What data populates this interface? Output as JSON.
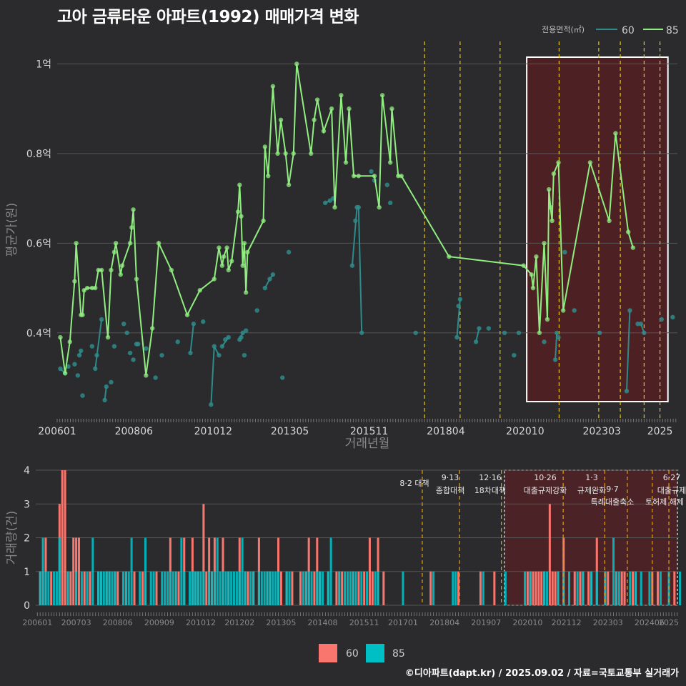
{
  "title": "고아 금류타운 아파트(1992) 매매가격 변화",
  "footer": "©디아파트(dapt.kr) / 2025.09.02 / 자료=국토교통부 실거래가",
  "colors": {
    "s60_line": "#2e8b8b",
    "s85_line": "#90ee80",
    "bar60": "#f8766d",
    "bar85": "#00bfc4",
    "policy": "#e6c419",
    "highlight_fill": "#5a1f22"
  },
  "chart_data": [
    {
      "type": "line",
      "ylabel": "평균가(원)",
      "xlabel": "거래년월",
      "legend_title": "전용면적(㎡)",
      "legend_position": "top-right",
      "x_ticks": [
        "200601",
        "200806",
        "201012",
        "201305",
        "201511",
        "201804",
        "202010",
        "202303",
        "2025"
      ],
      "y_ticks": [
        {
          "v": 0.4,
          "label": "0.4억"
        },
        {
          "v": 0.6,
          "label": "0.6억"
        },
        {
          "v": 0.8,
          "label": "0.8억"
        },
        {
          "v": 1.0,
          "label": "1억"
        }
      ],
      "ylim": [
        0.21,
        1.05
      ],
      "policy_dates": [
        2017.58,
        2018.7,
        2019.96,
        2021.82,
        2023.07,
        2023.75,
        2024.5,
        2025.0
      ],
      "highlight": [
        2020.8,
        2025.25
      ],
      "series": [
        {
          "name": "60",
          "points": [
            [
              2006.1,
              0.32
            ],
            [
              2006.25,
              0.31
            ],
            [
              2006.35,
              0.325
            ],
            [
              2006.55,
              0.33
            ],
            [
              2006.65,
              0.305
            ],
            [
              2006.7,
              0.35
            ],
            [
              2006.75,
              0.36
            ],
            [
              2006.8,
              0.26
            ],
            [
              2007.1,
              0.37
            ],
            [
              2007.2,
              0.32
            ],
            [
              2007.25,
              0.35
            ],
            [
              2007.4,
              0.43
            ],
            [
              2007.5,
              0.25
            ],
            [
              2007.55,
              0.28
            ],
            [
              2007.7,
              0.29
            ],
            [
              2007.8,
              0.37
            ],
            [
              2008.1,
              0.42
            ],
            [
              2008.2,
              0.4
            ],
            [
              2008.3,
              0.355
            ],
            [
              2008.4,
              0.34
            ],
            [
              2008.5,
              0.375
            ],
            [
              2008.55,
              0.375
            ],
            [
              2008.8,
              0.365
            ],
            [
              2009.1,
              0.3
            ],
            [
              2009.3,
              0.35
            ],
            [
              2009.8,
              0.38
            ],
            [
              2010.2,
              0.355
            ],
            [
              2010.3,
              0.42
            ],
            [
              2010.6,
              0.425
            ],
            [
              2010.85,
              0.24
            ],
            [
              2010.95,
              0.37
            ],
            [
              2011.1,
              0.35
            ],
            [
              2011.2,
              0.37
            ],
            [
              2011.3,
              0.385
            ],
            [
              2011.4,
              0.39
            ],
            [
              2011.75,
              0.385
            ],
            [
              2011.8,
              0.39
            ],
            [
              2011.85,
              0.4
            ],
            [
              2011.9,
              0.35
            ],
            [
              2011.95,
              0.405
            ],
            [
              2012.3,
              0.45
            ],
            [
              2012.55,
              0.5
            ],
            [
              2012.7,
              0.52
            ],
            [
              2012.8,
              0.53
            ],
            [
              2013.1,
              0.3
            ],
            [
              2013.3,
              0.58
            ],
            [
              2014.45,
              0.69
            ],
            [
              2014.6,
              0.695
            ],
            [
              2014.7,
              0.7
            ],
            [
              2015.3,
              0.55
            ],
            [
              2015.4,
              0.65
            ],
            [
              2015.45,
              0.68
            ],
            [
              2015.5,
              0.68
            ],
            [
              2015.6,
              0.4
            ],
            [
              2015.9,
              0.76
            ],
            [
              2016.0,
              0.74
            ],
            [
              2016.4,
              0.73
            ],
            [
              2016.5,
              0.69
            ],
            [
              2017.3,
              0.4
            ],
            [
              2018.6,
              0.39
            ],
            [
              2018.65,
              0.46
            ],
            [
              2018.7,
              0.475
            ],
            [
              2019.2,
              0.38
            ],
            [
              2019.3,
              0.41
            ],
            [
              2019.6,
              0.41
            ],
            [
              2020.1,
              0.4
            ],
            [
              2020.4,
              0.35
            ],
            [
              2020.55,
              0.4
            ],
            [
              2021.35,
              0.38
            ],
            [
              2021.7,
              0.34
            ],
            [
              2021.75,
              0.4
            ],
            [
              2021.8,
              0.39
            ],
            [
              2022.0,
              0.58
            ],
            [
              2022.3,
              0.45
            ],
            [
              2023.1,
              0.4
            ],
            [
              2023.95,
              0.27
            ],
            [
              2024.05,
              0.45
            ],
            [
              2024.3,
              0.42
            ],
            [
              2024.4,
              0.42
            ],
            [
              2024.5,
              0.4
            ],
            [
              2025.05,
              0.43
            ],
            [
              2025.4,
              0.435
            ]
          ],
          "line_segments": [
            [
              2006.1,
              2006.25
            ],
            [
              2006.7,
              2006.75
            ],
            [
              2007.2,
              2007.4
            ],
            [
              2007.5,
              2007.55
            ],
            [
              2010.2,
              2010.3
            ],
            [
              2010.85,
              2010.95
            ],
            [
              2010.95,
              2011.1
            ],
            [
              2011.2,
              2011.4
            ],
            [
              2011.75,
              2011.85
            ],
            [
              2012.55,
              2012.7
            ],
            [
              2012.7,
              2012.8
            ],
            [
              2014.45,
              2014.6
            ],
            [
              2015.3,
              2015.45
            ],
            [
              2015.45,
              2015.5
            ],
            [
              2015.5,
              2015.6
            ],
            [
              2018.6,
              2018.7
            ],
            [
              2019.2,
              2019.3
            ],
            [
              2021.7,
              2021.75
            ],
            [
              2023.95,
              2024.05
            ],
            [
              2024.4,
              2024.5
            ]
          ]
        },
        {
          "name": "85",
          "points": [
            [
              2006.1,
              0.39
            ],
            [
              2006.25,
              0.31
            ],
            [
              2006.4,
              0.38
            ],
            [
              2006.55,
              0.515
            ],
            [
              2006.6,
              0.6
            ],
            [
              2006.75,
              0.44
            ],
            [
              2006.8,
              0.44
            ],
            [
              2006.85,
              0.495
            ],
            [
              2006.95,
              0.5
            ],
            [
              2007.1,
              0.5
            ],
            [
              2007.2,
              0.5
            ],
            [
              2007.3,
              0.54
            ],
            [
              2007.4,
              0.54
            ],
            [
              2007.6,
              0.39
            ],
            [
              2007.7,
              0.54
            ],
            [
              2007.8,
              0.58
            ],
            [
              2007.85,
              0.6
            ],
            [
              2008.0,
              0.53
            ],
            [
              2008.05,
              0.55
            ],
            [
              2008.3,
              0.6
            ],
            [
              2008.35,
              0.635
            ],
            [
              2008.4,
              0.675
            ],
            [
              2008.5,
              0.52
            ],
            [
              2008.8,
              0.305
            ],
            [
              2009.0,
              0.41
            ],
            [
              2009.2,
              0.6
            ],
            [
              2009.6,
              0.54
            ],
            [
              2010.1,
              0.44
            ],
            [
              2010.5,
              0.495
            ],
            [
              2010.95,
              0.52
            ],
            [
              2011.1,
              0.59
            ],
            [
              2011.2,
              0.55
            ],
            [
              2011.25,
              0.57
            ],
            [
              2011.35,
              0.59
            ],
            [
              2011.4,
              0.54
            ],
            [
              2011.5,
              0.56
            ],
            [
              2011.7,
              0.67
            ],
            [
              2011.75,
              0.73
            ],
            [
              2011.8,
              0.66
            ],
            [
              2011.85,
              0.55
            ],
            [
              2011.9,
              0.6
            ],
            [
              2011.95,
              0.49
            ],
            [
              2012.0,
              0.58
            ],
            [
              2012.5,
              0.65
            ],
            [
              2012.55,
              0.815
            ],
            [
              2012.65,
              0.75
            ],
            [
              2012.8,
              0.95
            ],
            [
              2012.95,
              0.8
            ],
            [
              2013.05,
              0.875
            ],
            [
              2013.2,
              0.8
            ],
            [
              2013.3,
              0.73
            ],
            [
              2013.45,
              0.8
            ],
            [
              2013.55,
              1.0
            ],
            [
              2014.0,
              0.8
            ],
            [
              2014.1,
              0.875
            ],
            [
              2014.2,
              0.92
            ],
            [
              2014.4,
              0.85
            ],
            [
              2014.65,
              0.9
            ],
            [
              2014.75,
              0.68
            ],
            [
              2014.95,
              0.93
            ],
            [
              2015.1,
              0.78
            ],
            [
              2015.2,
              0.9
            ],
            [
              2015.35,
              0.75
            ],
            [
              2015.5,
              0.75
            ],
            [
              2016.0,
              0.75
            ],
            [
              2016.15,
              0.68
            ],
            [
              2016.25,
              0.93
            ],
            [
              2016.5,
              0.78
            ],
            [
              2016.55,
              0.9
            ],
            [
              2016.75,
              0.75
            ],
            [
              2016.85,
              0.75
            ],
            [
              2018.35,
              0.57
            ],
            [
              2020.7,
              0.55
            ],
            [
              2020.95,
              0.53
            ],
            [
              2021.0,
              0.5
            ],
            [
              2021.1,
              0.57
            ],
            [
              2021.2,
              0.4
            ],
            [
              2021.35,
              0.6
            ],
            [
              2021.45,
              0.43
            ],
            [
              2021.5,
              0.72
            ],
            [
              2021.55,
              0.68
            ],
            [
              2021.6,
              0.65
            ],
            [
              2021.65,
              0.755
            ],
            [
              2021.8,
              0.78
            ],
            [
              2021.95,
              0.45
            ],
            [
              2022.8,
              0.78
            ],
            [
              2023.4,
              0.65
            ],
            [
              2023.6,
              0.845
            ],
            [
              2024.0,
              0.625
            ],
            [
              2024.15,
              0.59
            ]
          ]
        }
      ]
    },
    {
      "type": "bar",
      "ylabel": "거래량(건)",
      "ylim": [
        0,
        4
      ],
      "y_ticks": [
        "0",
        "1",
        "2",
        "3",
        "4"
      ],
      "x_ticks": [
        "200601",
        "200703",
        "200806",
        "200909",
        "201012",
        "201202",
        "201305",
        "201408",
        "201511",
        "201701",
        "201804",
        "201907",
        "202010",
        "202112",
        "202303",
        "202406",
        "2025"
      ],
      "legend": [
        "60",
        "85"
      ],
      "annotations": [
        {
          "line1": "8·2 대책",
          "line2": ""
        },
        {
          "line1": "9·13",
          "line2": "종합대책"
        },
        {
          "line1": "12·16",
          "line2": "18차대책"
        },
        {
          "line1": "10·26",
          "line2": "대출규제강화"
        },
        {
          "line1": "1·3",
          "line2": "규제완화"
        },
        {
          "line1": "9·7",
          "line2": "특례대출축소"
        },
        {
          "line1": "",
          "line2": "토허제 해제"
        },
        {
          "line1": "6·27",
          "line2": "대출규제"
        }
      ]
    }
  ]
}
